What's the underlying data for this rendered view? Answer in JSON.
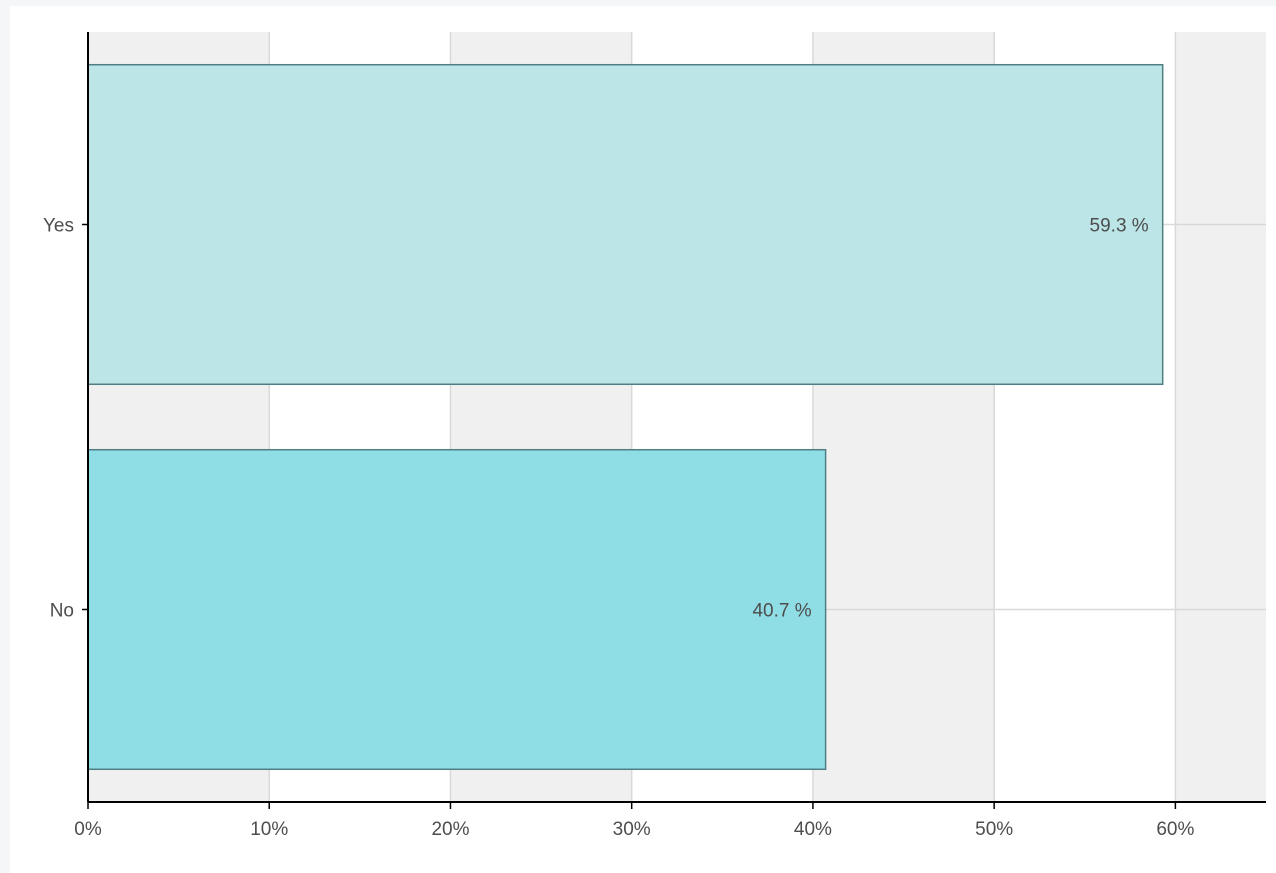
{
  "chart_data": {
    "type": "bar",
    "orientation": "horizontal",
    "categories": [
      "Yes",
      "No"
    ],
    "values": [
      59.3,
      40.7
    ],
    "data_labels": [
      "59.3 %",
      "40.7 %"
    ],
    "x_ticks": [
      0,
      10,
      20,
      30,
      40,
      50,
      60
    ],
    "x_tick_labels": [
      "0%",
      "10%",
      "20%",
      "30%",
      "40%",
      "50%",
      "60%"
    ],
    "xlim": [
      0,
      65
    ],
    "title": "",
    "xlabel": "",
    "ylabel": "",
    "grid": true,
    "colors": {
      "Yes": "#bbe5e6",
      "No": "#8fdde5",
      "bar_border": "#4f7f84",
      "band_shade": "#f0f0f0",
      "grid_line": "#d9d9d9",
      "axis_line": "#000000"
    }
  }
}
